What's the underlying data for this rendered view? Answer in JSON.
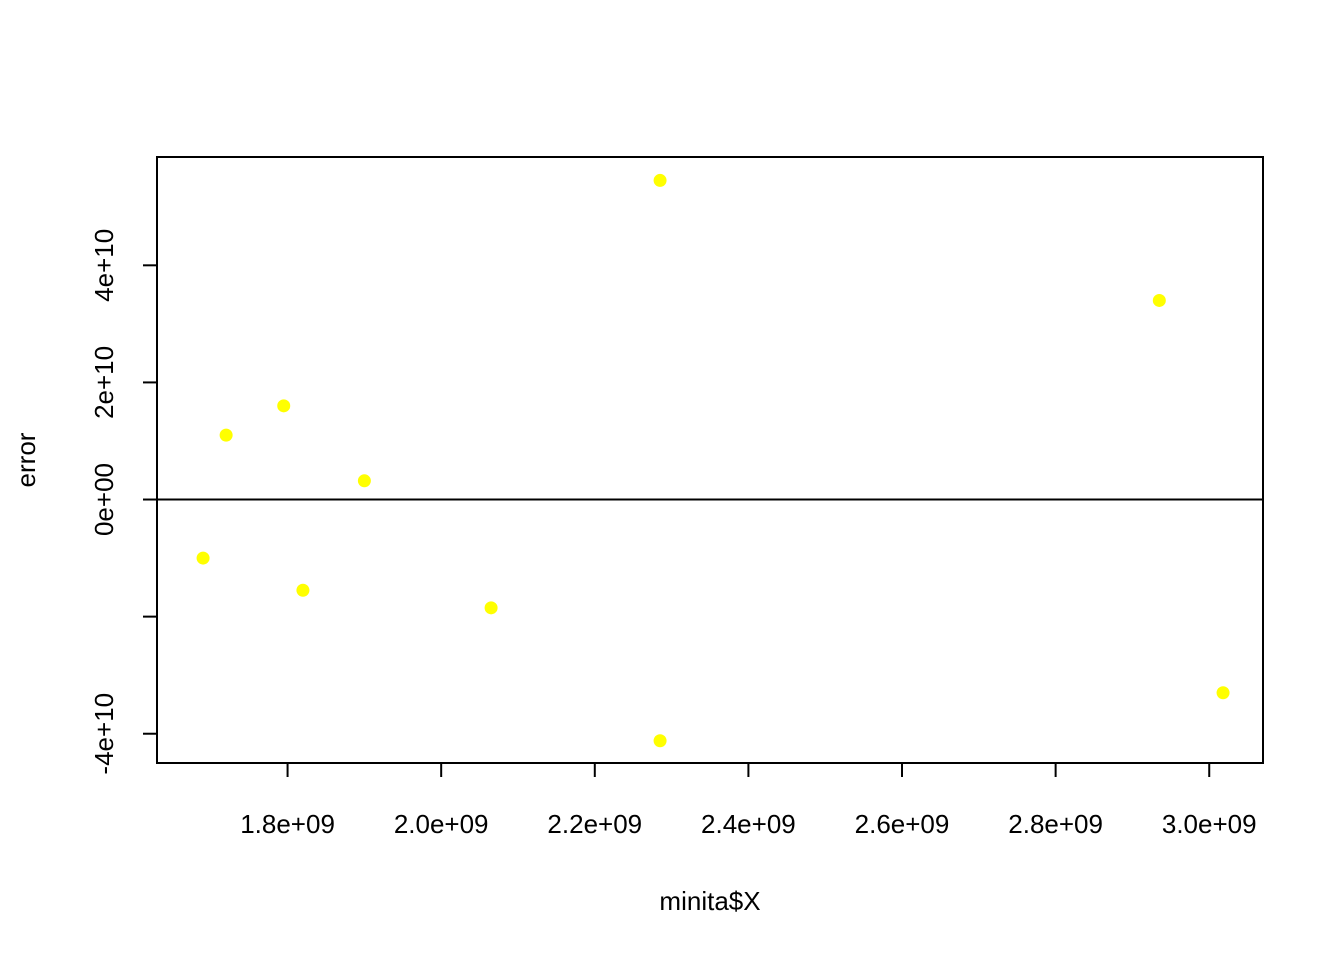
{
  "chart_data": {
    "type": "scatter",
    "title": "",
    "xlabel": "minita$X",
    "ylabel": "error",
    "xlim": [
      1630000000.0,
      3070000000.0
    ],
    "ylim": [
      -45000000000.0,
      58500000000.0
    ],
    "x_ticks": [
      1800000000.0,
      2000000000.0,
      2200000000.0,
      2400000000.0,
      2600000000.0,
      2800000000.0,
      3000000000.0
    ],
    "x_tick_labels": [
      "1.8e+09",
      "2.0e+09",
      "2.2e+09",
      "2.4e+09",
      "2.6e+09",
      "2.8e+09",
      "3.0e+09"
    ],
    "y_ticks": [
      -40000000000.0,
      -20000000000.0,
      0,
      20000000000.0,
      40000000000.0
    ],
    "y_tick_labels": [
      "-4e+10",
      "",
      "0e+00",
      "2e+10",
      "4e+10"
    ],
    "reference_line_y": 0,
    "grid": false,
    "legend": "none",
    "point_color": "#ffff00",
    "series": [
      {
        "x": [
          1690000000.0,
          1720000000.0,
          1795000000.0,
          1820000000.0,
          1900000000.0,
          2065000000.0,
          2285000000.0,
          2285000000.0,
          2935000000.0,
          3018000000.0
        ],
        "y": [
          -10000000000.0,
          11000000000.0,
          16000000000.0,
          -15500000000.0,
          3200000000.0,
          -18500000000.0,
          54500000000.0,
          -41200000000.0,
          34000000000.0,
          -33000000000.0
        ]
      }
    ]
  }
}
